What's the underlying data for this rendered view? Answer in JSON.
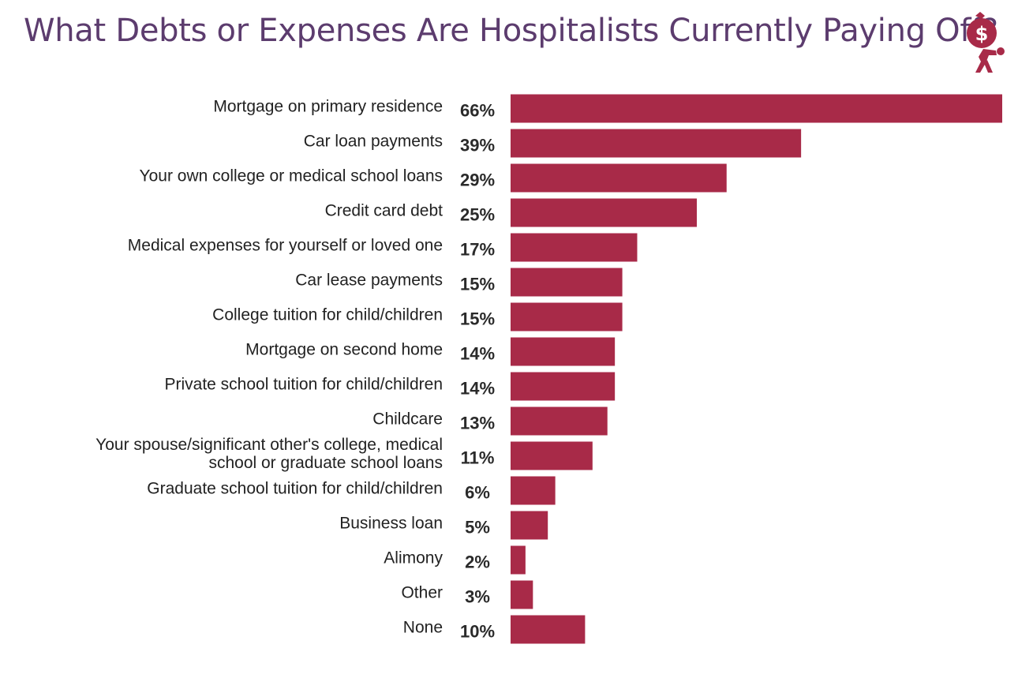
{
  "header": {
    "title": "What Debts or Expenses Are Hospitalists Currently Paying Off?",
    "logo_icon": "money-bag-carrier-icon",
    "logo_symbol": "$"
  },
  "colors": {
    "bar": "#a82a48",
    "title": "#5c3c6e"
  },
  "chart_data": {
    "type": "bar",
    "orientation": "horizontal",
    "categories": [
      "Mortgage on primary residence",
      "Car loan payments",
      "Your own college or medical school loans",
      "Credit card debt",
      "Medical expenses for yourself or loved one",
      "Car lease payments",
      "College tuition for child/children",
      "Mortgage on second home",
      "Private school tuition for child/children",
      "Childcare",
      "Your spouse/significant other's college, medical school or graduate school loans",
      "Graduate school tuition for child/children",
      "Business loan",
      "Alimony",
      "Other",
      "None"
    ],
    "category_lines": [
      [
        "Mortgage on primary residence"
      ],
      [
        "Car loan payments"
      ],
      [
        "Your own college or medical school loans"
      ],
      [
        "Credit card debt"
      ],
      [
        "Medical expenses for yourself or loved one"
      ],
      [
        "Car lease payments"
      ],
      [
        "College tuition for child/children"
      ],
      [
        "Mortgage on second home"
      ],
      [
        "Private school tuition for child/children"
      ],
      [
        "Childcare"
      ],
      [
        "Your spouse/significant other's college, medical",
        "school or graduate school loans"
      ],
      [
        "Graduate school tuition for child/children"
      ],
      [
        "Business loan"
      ],
      [
        "Alimony"
      ],
      [
        "Other"
      ],
      [
        "None"
      ]
    ],
    "values": [
      66,
      39,
      29,
      25,
      17,
      15,
      15,
      14,
      14,
      13,
      11,
      6,
      5,
      2,
      3,
      10
    ],
    "value_labels": [
      "66%",
      "39%",
      "29%",
      "25%",
      "17%",
      "15%",
      "15%",
      "14%",
      "14%",
      "13%",
      "11%",
      "6%",
      "5%",
      "2%",
      "3%",
      "10%"
    ],
    "unit": "%",
    "xlim": [
      0,
      66
    ],
    "grid": false,
    "legend": "none",
    "title": "What Debts or Expenses Are Hospitalists Currently Paying Off?"
  }
}
